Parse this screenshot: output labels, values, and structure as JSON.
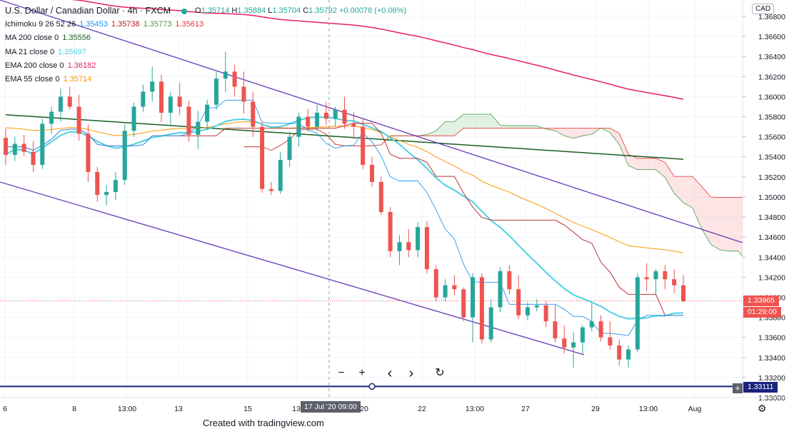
{
  "header": {
    "title": "U.S. Dollar / Canadian Dollar · 4h · FXCM",
    "ohlc": {
      "o_label": "O",
      "o": "1.35714",
      "h_label": "H",
      "h": "1.35884",
      "l_label": "L",
      "l": "1.35704",
      "c_label": "C",
      "c": "1.35792",
      "change": "+0.00078 (+0.06%)"
    }
  },
  "indicators": [
    {
      "label": "Ichimoku 9 26 52 26",
      "values": [
        {
          "v": "1.35453",
          "color": "#2196f3"
        },
        {
          "v": "1.35738",
          "color": "#b71c1c"
        },
        {
          "v": "1.35773",
          "color": "#43a047"
        },
        {
          "v": "1.35613",
          "color": "#e53935"
        }
      ]
    },
    {
      "label": "MA 200 close 0",
      "values": [
        {
          "v": "1.35556",
          "color": "#1b5e20"
        }
      ]
    },
    {
      "label": "MA 21 close 0",
      "values": [
        {
          "v": "1.35697",
          "color": "#4dd0e1"
        }
      ]
    },
    {
      "label": "EMA 200 close 0",
      "values": [
        {
          "v": "1.36182",
          "color": "#e91e63"
        }
      ]
    },
    {
      "label": "EMA 55 close 0",
      "values": [
        {
          "v": "1.35714",
          "color": "#ff9800"
        }
      ]
    }
  ],
  "currency_badge": "CAD",
  "price_tags": {
    "last_price": "1.33965",
    "countdown": "01:29:00",
    "level": "1.33111"
  },
  "x_axis": {
    "ticks": [
      "6",
      "8",
      "13:00",
      "13",
      "15",
      "13",
      "20",
      "22",
      "13:00",
      "27",
      "29",
      "13:00",
      "Aug"
    ],
    "crosshair_label": "17 Jul '20   09:00"
  },
  "nav": {
    "zoom_out": "−",
    "zoom_in": "+",
    "back": "‹",
    "forward": "›",
    "reset": "↻"
  },
  "watermark": "Created with tradingview.com",
  "chart_data": {
    "type": "candlestick",
    "symbol": "USDCAD",
    "timeframe": "4h",
    "ylim": [
      1.33,
      1.369
    ],
    "y_ticks": [
      "1.36800",
      "1.36600",
      "1.36400",
      "1.36200",
      "1.36000",
      "1.35800",
      "1.35600",
      "1.35400",
      "1.35200",
      "1.35000",
      "1.34800",
      "1.34600",
      "1.34400",
      "1.34200",
      "1.34000",
      "1.33800",
      "1.33600",
      "1.33400",
      "1.33200",
      "1.33000"
    ],
    "colors": {
      "up": "#26a69a",
      "down": "#ef5350",
      "ma200": "#1b5e20",
      "ma21": "#4dd0e1",
      "ema200": "#e91e63",
      "ema55": "#ff9800",
      "tenkan": "#2196f3",
      "kijun": "#b71c1c",
      "span_a": "#43a047",
      "span_b": "#e53935",
      "channel": "#673ab7",
      "level": "#1a237e"
    },
    "candles": [
      [
        1.3559,
        1.3568,
        1.3532,
        1.3542
      ],
      [
        1.3542,
        1.356,
        1.3536,
        1.3553
      ],
      [
        1.3553,
        1.3562,
        1.3541,
        1.3545
      ],
      [
        1.3545,
        1.3556,
        1.3525,
        1.3532
      ],
      [
        1.3532,
        1.3578,
        1.3528,
        1.3573
      ],
      [
        1.3573,
        1.359,
        1.3563,
        1.3585
      ],
      [
        1.3585,
        1.3608,
        1.3575,
        1.36
      ],
      [
        1.36,
        1.361,
        1.3587,
        1.359
      ],
      [
        1.359,
        1.3602,
        1.3556,
        1.3563
      ],
      [
        1.3563,
        1.3572,
        1.3515,
        1.3525
      ],
      [
        1.3525,
        1.353,
        1.3495,
        1.3502
      ],
      [
        1.3502,
        1.3512,
        1.3492,
        1.3505
      ],
      [
        1.3505,
        1.3525,
        1.3497,
        1.3517
      ],
      [
        1.3517,
        1.3572,
        1.3512,
        1.3566
      ],
      [
        1.3566,
        1.3594,
        1.356,
        1.359
      ],
      [
        1.359,
        1.3612,
        1.3585,
        1.3605
      ],
      [
        1.3605,
        1.363,
        1.3595,
        1.3615
      ],
      [
        1.3615,
        1.3622,
        1.3575,
        1.3584
      ],
      [
        1.3584,
        1.3605,
        1.3572,
        1.36
      ],
      [
        1.36,
        1.3614,
        1.3582,
        1.359
      ],
      [
        1.359,
        1.3596,
        1.3555,
        1.3562
      ],
      [
        1.3562,
        1.3586,
        1.3548,
        1.3575
      ],
      [
        1.3575,
        1.3597,
        1.3568,
        1.3592
      ],
      [
        1.3592,
        1.3625,
        1.3587,
        1.3618
      ],
      [
        1.3618,
        1.3645,
        1.3605,
        1.3625
      ],
      [
        1.3625,
        1.3632,
        1.36,
        1.361
      ],
      [
        1.361,
        1.3625,
        1.3583,
        1.3595
      ],
      [
        1.3595,
        1.3605,
        1.356,
        1.357
      ],
      [
        1.357,
        1.3575,
        1.3504,
        1.3508
      ],
      [
        1.3508,
        1.3515,
        1.3502,
        1.3506
      ],
      [
        1.3506,
        1.3545,
        1.3503,
        1.3537
      ],
      [
        1.3537,
        1.3565,
        1.353,
        1.356
      ],
      [
        1.356,
        1.3584,
        1.355,
        1.358
      ],
      [
        1.358,
        1.3588,
        1.3565,
        1.357
      ],
      [
        1.357,
        1.3592,
        1.3566,
        1.3584
      ],
      [
        1.3584,
        1.3595,
        1.3572,
        1.3578
      ],
      [
        1.3578,
        1.359,
        1.357,
        1.3587
      ],
      [
        1.3587,
        1.36,
        1.3568,
        1.3573
      ],
      [
        1.3573,
        1.3585,
        1.3558,
        1.357
      ],
      [
        1.357,
        1.3578,
        1.3528,
        1.3532
      ],
      [
        1.3532,
        1.354,
        1.351,
        1.3515
      ],
      [
        1.3515,
        1.352,
        1.3482,
        1.3485
      ],
      [
        1.3485,
        1.349,
        1.344,
        1.3446
      ],
      [
        1.3446,
        1.3462,
        1.3432,
        1.3455
      ],
      [
        1.3455,
        1.3468,
        1.344,
        1.3447
      ],
      [
        1.3447,
        1.3475,
        1.344,
        1.347
      ],
      [
        1.347,
        1.3476,
        1.3424,
        1.3428
      ],
      [
        1.3428,
        1.3432,
        1.3396,
        1.34
      ],
      [
        1.34,
        1.3418,
        1.3396,
        1.3412
      ],
      [
        1.3412,
        1.3422,
        1.3402,
        1.3408
      ],
      [
        1.3408,
        1.341,
        1.3376,
        1.338
      ],
      [
        1.338,
        1.3424,
        1.3355,
        1.342
      ],
      [
        1.342,
        1.3424,
        1.3354,
        1.3358
      ],
      [
        1.3358,
        1.3398,
        1.3355,
        1.339
      ],
      [
        1.339,
        1.343,
        1.3385,
        1.3426
      ],
      [
        1.3426,
        1.3432,
        1.3403,
        1.3408
      ],
      [
        1.3408,
        1.3422,
        1.3378,
        1.3382
      ],
      [
        1.3382,
        1.3395,
        1.3377,
        1.339
      ],
      [
        1.339,
        1.3398,
        1.3386,
        1.3392
      ],
      [
        1.3392,
        1.3396,
        1.337,
        1.3376
      ],
      [
        1.3376,
        1.3392,
        1.3355,
        1.3359
      ],
      [
        1.3359,
        1.3372,
        1.3344,
        1.335
      ],
      [
        1.335,
        1.3365,
        1.333,
        1.3355
      ],
      [
        1.3355,
        1.3372,
        1.3344,
        1.337
      ],
      [
        1.337,
        1.3394,
        1.3366,
        1.3376
      ],
      [
        1.3376,
        1.3382,
        1.3356,
        1.336
      ],
      [
        1.336,
        1.3376,
        1.3348,
        1.3352
      ],
      [
        1.3352,
        1.3358,
        1.3332,
        1.3338
      ],
      [
        1.3338,
        1.3352,
        1.333,
        1.3348
      ],
      [
        1.3348,
        1.3424,
        1.3345,
        1.342
      ],
      [
        1.342,
        1.3434,
        1.3406,
        1.3418
      ],
      [
        1.3418,
        1.3428,
        1.3402,
        1.3426
      ],
      [
        1.3426,
        1.3432,
        1.3408,
        1.3418
      ],
      [
        1.3418,
        1.3428,
        1.3404,
        1.3412
      ],
      [
        1.3412,
        1.3422,
        1.3395,
        1.3396
      ]
    ]
  }
}
